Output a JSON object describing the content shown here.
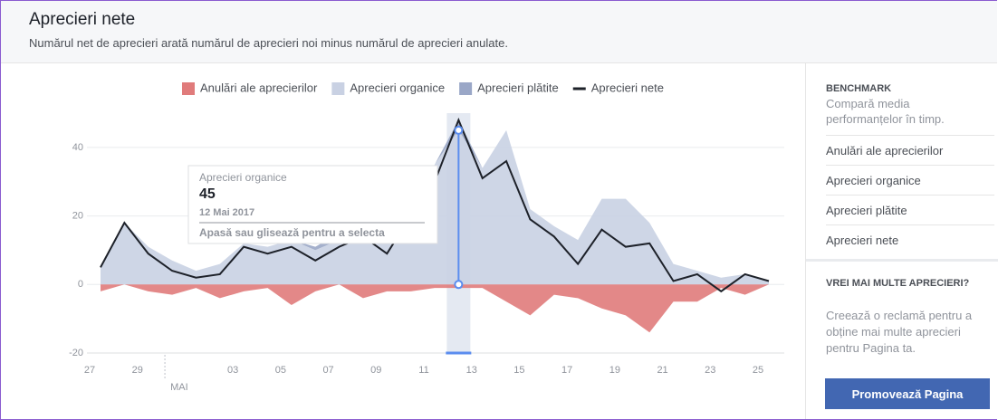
{
  "header": {
    "title": "Aprecieri nete",
    "subtitle": "Numărul net de aprecieri arată numărul de aprecieri noi minus numărul de aprecieri anulate."
  },
  "chart_data": {
    "type": "area",
    "categories": [
      "27",
      null,
      "29",
      null,
      null,
      null,
      "03",
      null,
      "05",
      null,
      "07",
      null,
      "09",
      null,
      "11",
      null,
      "13",
      null,
      "15",
      null,
      "17",
      null,
      "19",
      null,
      "21",
      null,
      "23",
      null,
      "25"
    ],
    "month_label": "MAI",
    "series": [
      {
        "name": "Anulări ale aprecierilor",
        "color": "#e07b7b",
        "values": [
          -2,
          0,
          -2,
          -3,
          -1,
          -4,
          -2,
          -1,
          -6,
          -2,
          0,
          -4,
          -2,
          -2,
          -1,
          -1,
          -1,
          -5,
          -9,
          -3,
          -4,
          -7,
          -9,
          -14,
          -5,
          -5,
          -1,
          -3,
          0
        ]
      },
      {
        "name": "Aprecieri organice",
        "color": "#c9d1e3",
        "values": [
          5,
          18,
          11,
          7,
          4,
          6,
          12,
          11,
          13,
          10,
          13,
          24,
          12,
          24,
          35,
          45,
          34,
          45,
          22,
          17,
          13,
          25,
          25,
          18,
          6,
          4,
          2,
          3,
          1
        ]
      },
      {
        "name": "Aprecieri plătite",
        "color": "#9aa7c7",
        "values": [
          0,
          0,
          0,
          0,
          0,
          0,
          0,
          0,
          0,
          1,
          2,
          0,
          0,
          0,
          0,
          3,
          0,
          0,
          0,
          0,
          0,
          0,
          0,
          0,
          0,
          0,
          0,
          0,
          0
        ]
      },
      {
        "name": "Aprecieri nete",
        "color": "#1d2129",
        "values": [
          5,
          18,
          9,
          4,
          2,
          3,
          11,
          9,
          11,
          7,
          11,
          14,
          9,
          20,
          30,
          48,
          31,
          36,
          19,
          14,
          6,
          16,
          11,
          12,
          1,
          3,
          -2,
          3,
          1
        ]
      }
    ],
    "ylim": [
      -20,
      50
    ],
    "yticks": [
      -20,
      0,
      20,
      40
    ],
    "grid": true,
    "tooltip": {
      "date": "12 Mai 2017",
      "hint": "Apasă sau glisează pentru a selecta"
    }
  },
  "sidebar": {
    "benchmark_title": "BENCHMARK",
    "benchmark_text": "Compară media performanțelor în timp.",
    "links": [
      "Anulări ale aprecierilor",
      "Aprecieri organice",
      "Aprecieri plătite",
      "Aprecieri nete"
    ],
    "promo_title": "VREI MAI MULTE APRECIERI?",
    "promo_text": "Creează o reclamă pentru a obține mai multe aprecieri pentru Pagina ta.",
    "button": "Promovează Pagina"
  }
}
